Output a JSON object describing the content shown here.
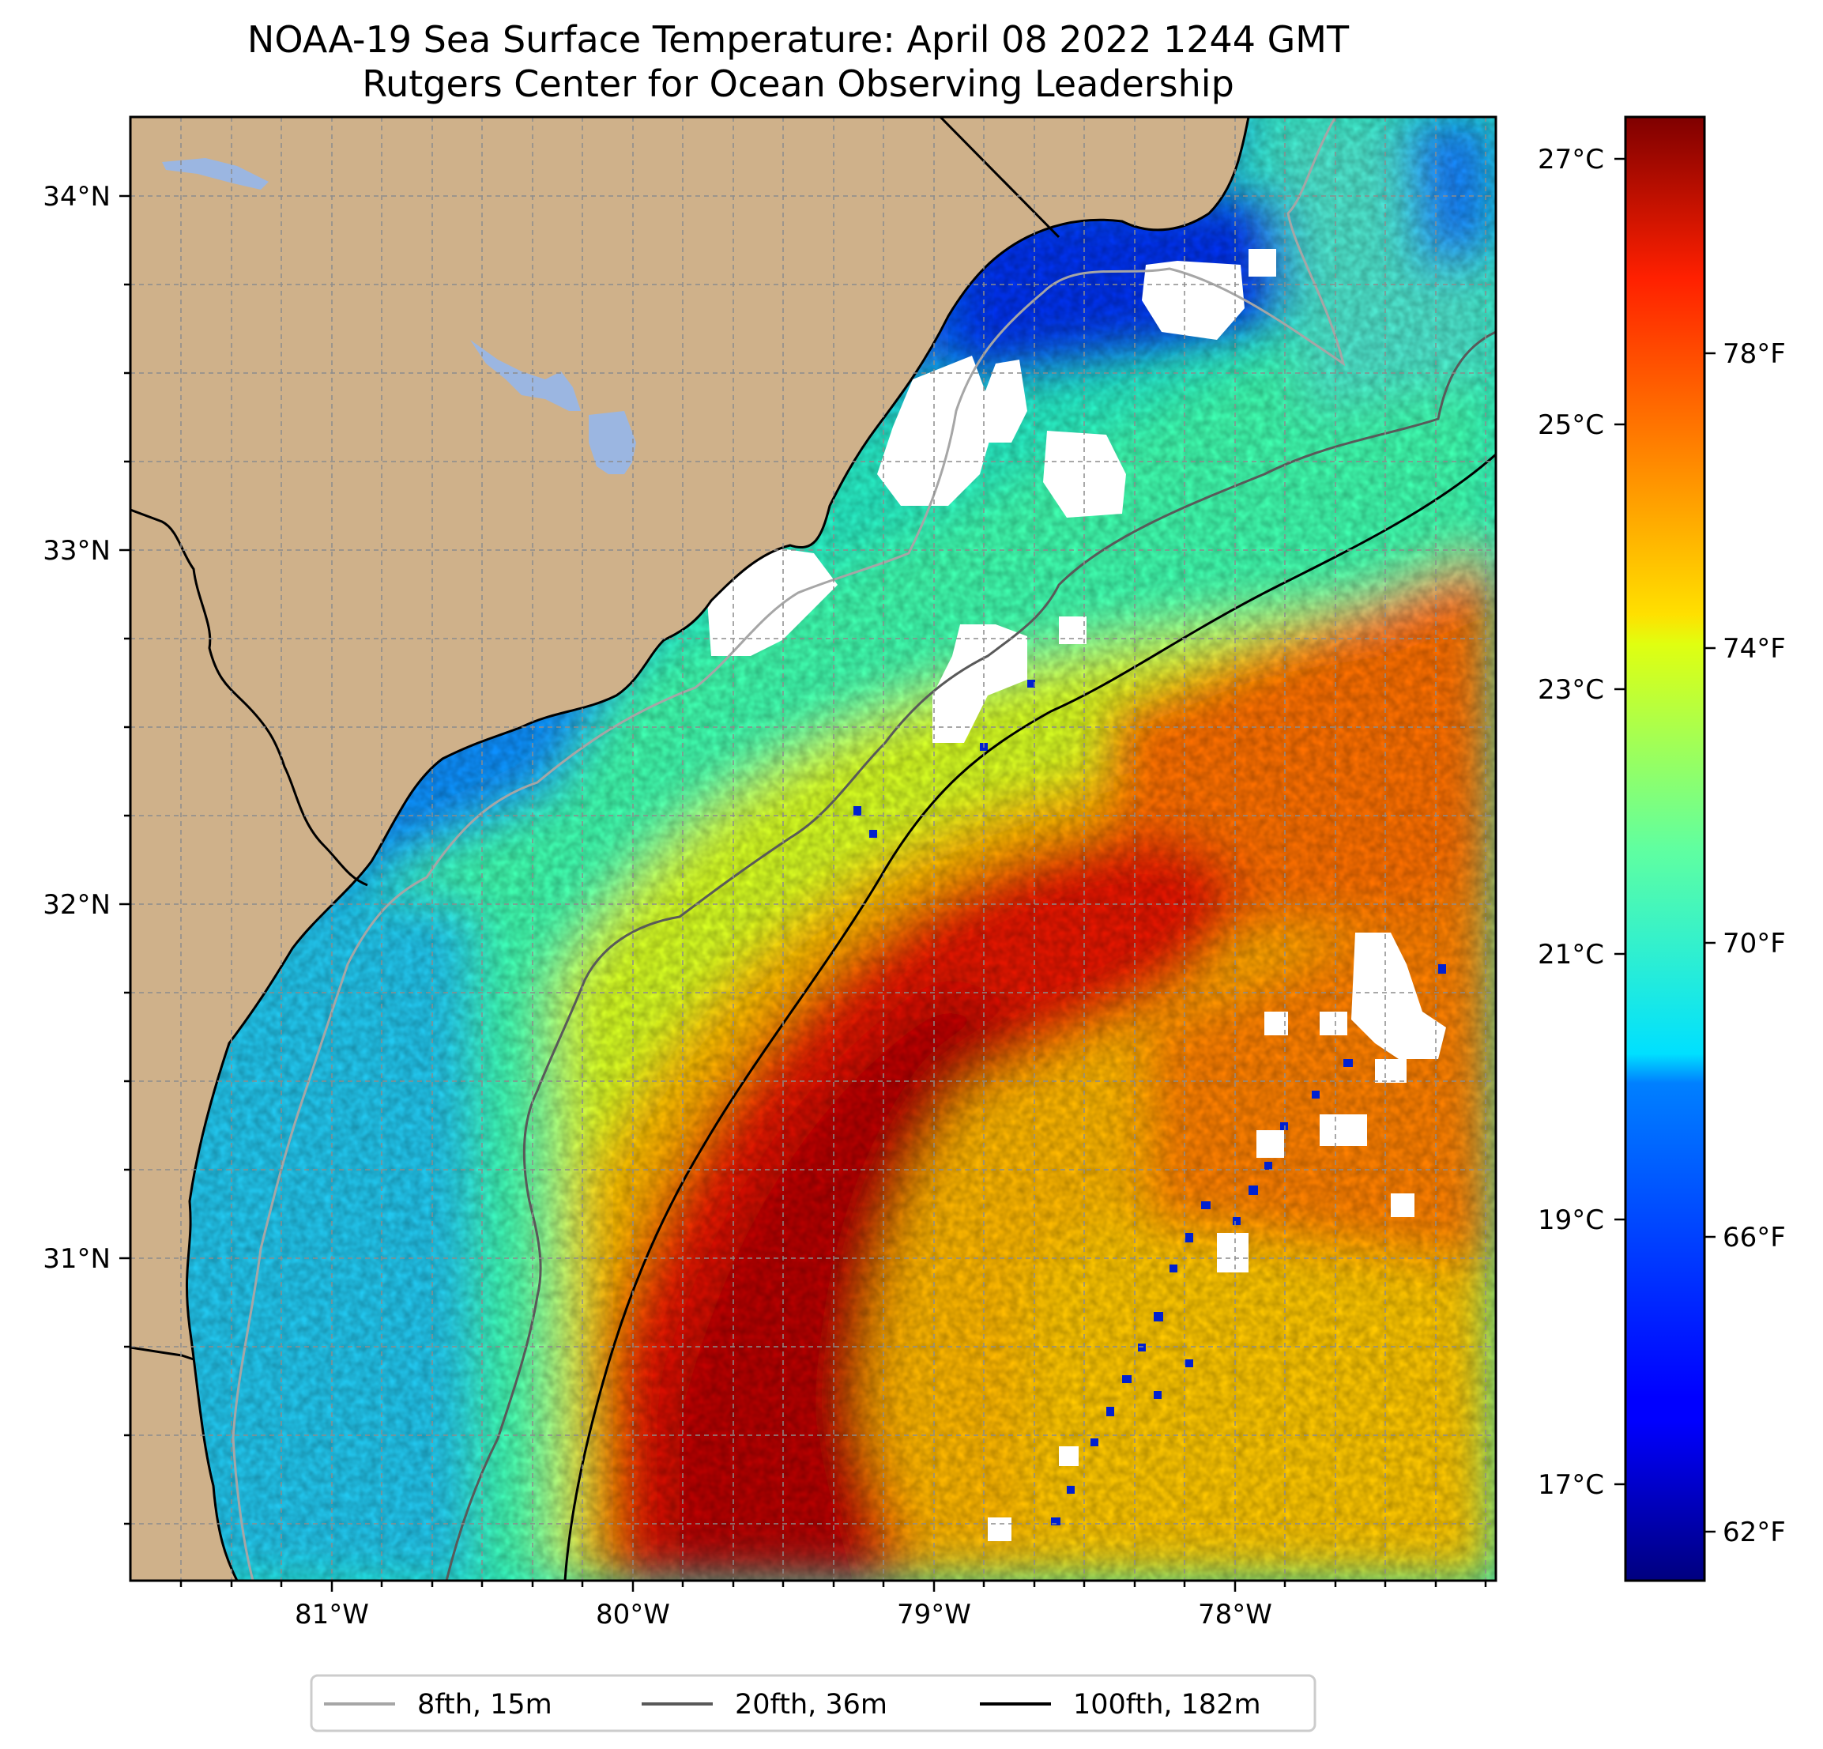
{
  "title": {
    "line1": "NOAA-19 Sea Surface Temperature: April 08 2022 1244 GMT",
    "line2": "Rutgers Center for Ocean Observing Leadership"
  },
  "map": {
    "lat_labels": [
      "34°N",
      "33°N",
      "32°N",
      "31°N"
    ],
    "lon_labels": [
      "81°W",
      "80°W",
      "79°W",
      "78°W"
    ],
    "colors": {
      "land": "#cfb18a",
      "lake": "#9bb6e1",
      "cloud": "#ffffff",
      "isobath_8fth": "#a6a6a6",
      "isobath_20fth": "#595959",
      "isobath_100fth": "#000000"
    }
  },
  "colorbar": {
    "celsius_labels": [
      "27°C",
      "25°C",
      "23°C",
      "21°C",
      "19°C",
      "17°C"
    ],
    "fahrenheit_labels": [
      "78°F",
      "74°F",
      "70°F",
      "66°F",
      "62°F"
    ],
    "colormap": "jet"
  },
  "legend": {
    "items": [
      {
        "label": "8fth, 15m",
        "color": "#a6a6a6"
      },
      {
        "label": "20fth, 36m",
        "color": "#595959"
      },
      {
        "label": "100fth, 182m",
        "color": "#000000"
      }
    ]
  }
}
